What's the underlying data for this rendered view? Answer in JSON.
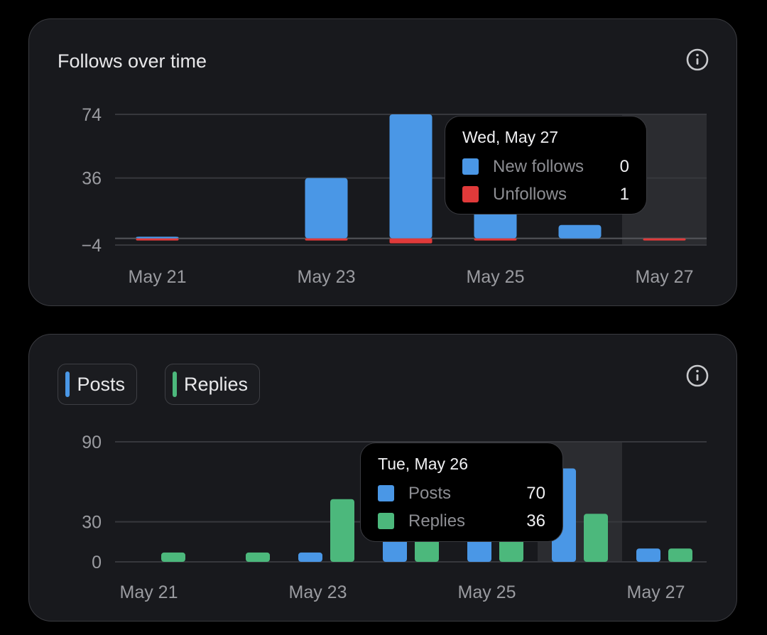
{
  "colors": {
    "blue": "#4a97e6",
    "red": "#e03a3a",
    "green": "#4cb87c"
  },
  "follows": {
    "title": "Follows over time",
    "info_icon": "info-circle-icon",
    "tooltip": {
      "title": "Wed, May 27",
      "rows": [
        {
          "name": "New follows",
          "value": "0",
          "color": "#4a97e6"
        },
        {
          "name": "Unfollows",
          "value": "1",
          "color": "#e03a3a"
        }
      ]
    }
  },
  "activity": {
    "info_icon": "info-circle-icon",
    "legend": [
      {
        "label": "Posts",
        "color": "#4a97e6"
      },
      {
        "label": "Replies",
        "color": "#4cb87c"
      }
    ],
    "tooltip": {
      "title": "Tue, May 26",
      "rows": [
        {
          "name": "Posts",
          "value": "70",
          "color": "#4a97e6"
        },
        {
          "name": "Replies",
          "value": "36",
          "color": "#4cb87c"
        }
      ]
    }
  },
  "chart_data": [
    {
      "type": "bar",
      "title": "Follows over time",
      "categories": [
        "May 21",
        "May 22",
        "May 23",
        "May 24",
        "May 25",
        "May 26",
        "May 27"
      ],
      "x_tick_labels": [
        "May 21",
        "May 23",
        "May 25",
        "May 27"
      ],
      "y_ticks": [
        74,
        36,
        -4
      ],
      "y_tick_labels": [
        "74",
        "36",
        "−4"
      ],
      "ylim": [
        -4,
        74
      ],
      "stacked": true,
      "highlighted_category": "May 27",
      "series": [
        {
          "name": "New follows",
          "color": "#4a97e6",
          "values": [
            1,
            0,
            36,
            74,
            32,
            8,
            0
          ]
        },
        {
          "name": "Unfollows",
          "color": "#e03a3a",
          "values": [
            -1,
            0,
            -1,
            -3,
            -1,
            0,
            -1
          ]
        }
      ]
    },
    {
      "type": "bar",
      "categories": [
        "May 21",
        "May 22",
        "May 23",
        "May 24",
        "May 25",
        "May 26",
        "May 27"
      ],
      "x_tick_labels": [
        "May 21",
        "May 23",
        "May 25",
        "May 27"
      ],
      "y_ticks": [
        90,
        30,
        0
      ],
      "y_tick_labels": [
        "90",
        "30",
        "0"
      ],
      "ylim": [
        0,
        90
      ],
      "grouped": true,
      "highlighted_category": "May 26",
      "series": [
        {
          "name": "Posts",
          "color": "#4a97e6",
          "values": [
            0,
            0,
            7,
            20,
            20,
            70,
            10
          ]
        },
        {
          "name": "Replies",
          "color": "#4cb87c",
          "values": [
            7,
            7,
            47,
            20,
            20,
            36,
            10
          ]
        }
      ]
    }
  ]
}
